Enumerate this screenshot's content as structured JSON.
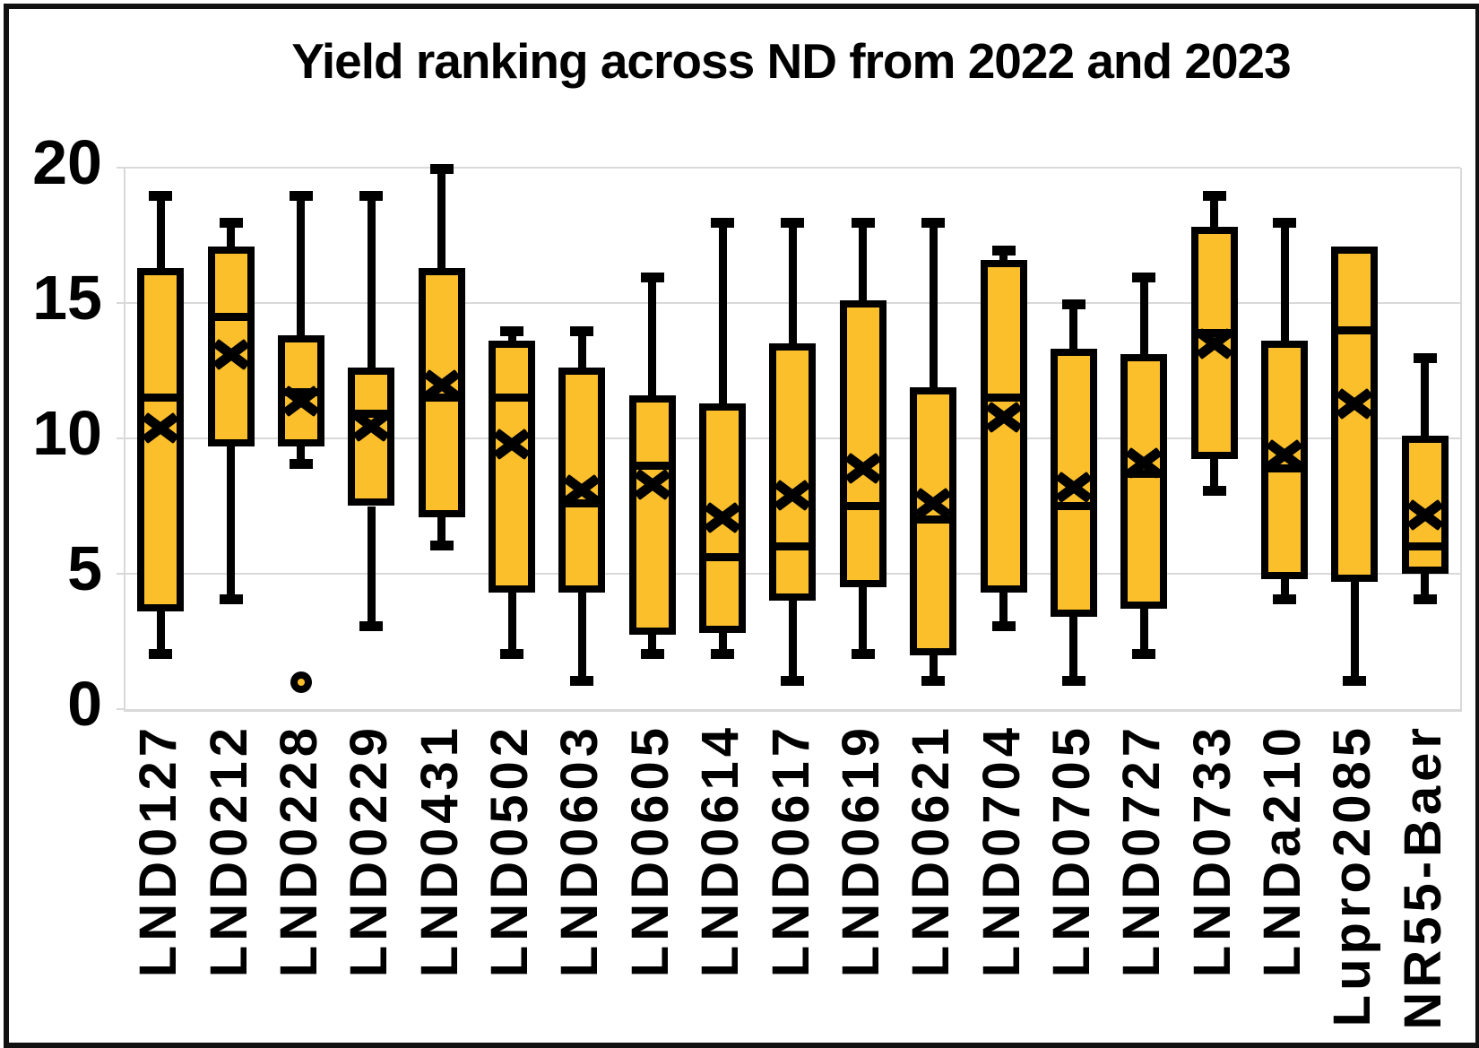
{
  "title": "Yield ranking across ND from 2022 and 2023",
  "colors": {
    "box_fill": "#FBBF2C",
    "line": "#000000",
    "grid": "#D9D9D9",
    "frame": "#111111",
    "background": "#FFFFFF"
  },
  "chart_data": {
    "type": "box",
    "title": "Yield ranking across ND from 2022 and 2023",
    "xlabel": "",
    "ylabel": "",
    "ylim": [
      0,
      20
    ],
    "yticks": [
      0,
      5,
      10,
      15,
      20
    ],
    "grid": true,
    "legend": "none",
    "marker_styles": {
      "mean_marker": "x-cross",
      "outlier_marker": "circle-dot"
    },
    "categories": [
      "LND0127",
      "LND0212",
      "LND0228",
      "LND0229",
      "LND0431",
      "LND0502",
      "LND0603",
      "LND0605",
      "LND0614",
      "LND0617",
      "LND0619",
      "LND0621",
      "LND0704",
      "LND0705",
      "LND0727",
      "LND0733",
      "LNDa210",
      "Lupro2085",
      "NR55-Baer"
    ],
    "series": [
      {
        "name": "LND0127",
        "whisker_low": 2,
        "q1": 3.6,
        "median": 11.5,
        "q3": 16.3,
        "whisker_high": 19,
        "mean": 10.4,
        "outliers": []
      },
      {
        "name": "LND0212",
        "whisker_low": 4,
        "q1": 9.7,
        "median": 14.5,
        "q3": 17.1,
        "whisker_high": 18,
        "mean": 13.1,
        "outliers": []
      },
      {
        "name": "LND0228",
        "whisker_low": 9,
        "q1": 9.7,
        "median": 11.7,
        "q3": 13.8,
        "whisker_high": 19,
        "mean": 11.4,
        "outliers": [
          1
        ]
      },
      {
        "name": "LND0229",
        "whisker_low": 3,
        "q1": 7.5,
        "median": 10.9,
        "q3": 12.6,
        "whisker_high": 19,
        "mean": 10.45,
        "outliers": []
      },
      {
        "name": "LND0431",
        "whisker_low": 6,
        "q1": 7.1,
        "median": 11.5,
        "q3": 16.3,
        "whisker_high": 20,
        "mean": 12.0,
        "outliers": []
      },
      {
        "name": "LND0502",
        "whisker_low": 2,
        "q1": 4.3,
        "median": 11.5,
        "q3": 13.6,
        "whisker_high": 14,
        "mean": 9.8,
        "outliers": []
      },
      {
        "name": "LND0603",
        "whisker_low": 1,
        "q1": 4.3,
        "median": 7.6,
        "q3": 12.6,
        "whisker_high": 14,
        "mean": 8.1,
        "outliers": []
      },
      {
        "name": "LND0605",
        "whisker_low": 2,
        "q1": 2.75,
        "median": 9.0,
        "q3": 11.6,
        "whisker_high": 16,
        "mean": 8.3,
        "outliers": []
      },
      {
        "name": "LND0614",
        "whisker_low": 2,
        "q1": 2.8,
        "median": 5.6,
        "q3": 11.3,
        "whisker_high": 18,
        "mean": 7.1,
        "outliers": []
      },
      {
        "name": "LND0617",
        "whisker_low": 1,
        "q1": 4.0,
        "median": 6.0,
        "q3": 13.5,
        "whisker_high": 18,
        "mean": 7.9,
        "outliers": []
      },
      {
        "name": "LND0619",
        "whisker_low": 2,
        "q1": 4.5,
        "median": 7.5,
        "q3": 15.1,
        "whisker_high": 18,
        "mean": 8.9,
        "outliers": []
      },
      {
        "name": "LND0621",
        "whisker_low": 1,
        "q1": 2.0,
        "median": 7.0,
        "q3": 11.9,
        "whisker_high": 18,
        "mean": 7.6,
        "outliers": []
      },
      {
        "name": "LND0704",
        "whisker_low": 3,
        "q1": 4.3,
        "median": 11.5,
        "q3": 16.6,
        "whisker_high": 17,
        "mean": 10.8,
        "outliers": []
      },
      {
        "name": "LND0705",
        "whisker_low": 1,
        "q1": 3.4,
        "median": 7.5,
        "q3": 13.3,
        "whisker_high": 15,
        "mean": 8.2,
        "outliers": []
      },
      {
        "name": "LND0727",
        "whisker_low": 2,
        "q1": 3.7,
        "median": 8.7,
        "q3": 13.1,
        "whisker_high": 16,
        "mean": 9.1,
        "outliers": []
      },
      {
        "name": "LND0733",
        "whisker_low": 8,
        "q1": 9.25,
        "median": 13.9,
        "q3": 17.8,
        "whisker_high": 19,
        "mean": 13.5,
        "outliers": []
      },
      {
        "name": "LNDa210",
        "whisker_low": 4,
        "q1": 4.8,
        "median": 8.9,
        "q3": 13.6,
        "whisker_high": 18,
        "mean": 9.4,
        "outliers": []
      },
      {
        "name": "Lupro2085",
        "whisker_low": 1,
        "q1": 4.7,
        "median": 14.0,
        "q3": 17.1,
        "whisker_high": 17.1,
        "mean": 11.3,
        "outliers": []
      },
      {
        "name": "NR55-Baer",
        "whisker_low": 4,
        "q1": 5.0,
        "median": 6.0,
        "q3": 10.1,
        "whisker_high": 13,
        "mean": 7.2,
        "outliers": []
      }
    ]
  }
}
